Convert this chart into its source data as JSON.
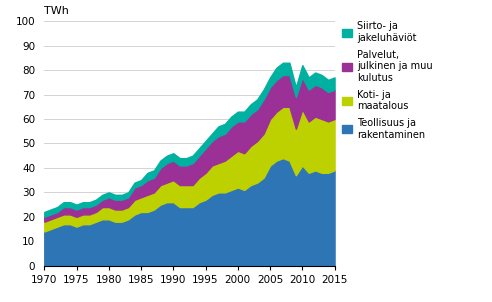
{
  "years": [
    1970,
    1971,
    1972,
    1973,
    1974,
    1975,
    1976,
    1977,
    1978,
    1979,
    1980,
    1981,
    1982,
    1983,
    1984,
    1985,
    1986,
    1987,
    1988,
    1989,
    1990,
    1991,
    1992,
    1993,
    1994,
    1995,
    1996,
    1997,
    1998,
    1999,
    2000,
    2001,
    2002,
    2003,
    2004,
    2005,
    2006,
    2007,
    2008,
    2009,
    2010,
    2011,
    2012,
    2013,
    2014,
    2015
  ],
  "teollisuus": [
    14,
    15,
    16,
    17,
    17,
    16,
    17,
    17,
    18,
    19,
    19,
    18,
    18,
    19,
    21,
    22,
    22,
    23,
    25,
    26,
    26,
    24,
    24,
    24,
    26,
    27,
    29,
    30,
    30,
    31,
    32,
    31,
    33,
    34,
    36,
    41,
    43,
    44,
    43,
    37,
    41,
    38,
    39,
    38,
    38,
    39
  ],
  "koti": [
    4,
    4,
    4,
    4,
    4,
    4,
    4,
    4,
    4,
    5,
    5,
    5,
    5,
    5,
    6,
    6,
    7,
    7,
    8,
    8,
    9,
    9,
    9,
    9,
    10,
    11,
    12,
    12,
    13,
    14,
    15,
    15,
    16,
    17,
    18,
    19,
    20,
    21,
    22,
    19,
    23,
    21,
    22,
    22,
    21,
    21
  ],
  "palvelut": [
    2,
    2,
    2,
    3,
    3,
    3,
    3,
    3,
    3,
    3,
    4,
    4,
    4,
    4,
    5,
    5,
    6,
    6,
    7,
    8,
    8,
    8,
    8,
    9,
    9,
    10,
    10,
    11,
    11,
    12,
    12,
    13,
    13,
    13,
    14,
    13,
    13,
    13,
    13,
    13,
    13,
    13,
    13,
    13,
    12,
    12
  ],
  "siirto": [
    2,
    2,
    2,
    2,
    2,
    2,
    2,
    2,
    2,
    2,
    2,
    2,
    2,
    2,
    2,
    2,
    3,
    3,
    3,
    3,
    3,
    3,
    3,
    3,
    3,
    3,
    3,
    4,
    4,
    4,
    4,
    4,
    4,
    4,
    4,
    4,
    5,
    5,
    5,
    4,
    5,
    5,
    5,
    5,
    5,
    5
  ],
  "colors": {
    "teollisuus": "#2e75b6",
    "koti": "#bdd000",
    "palvelut": "#9b3096",
    "siirto": "#00b0a0"
  },
  "legend_labels": [
    "Siirto- ja\njakeluhäviöt",
    "Palvelut,\njulkinen ja muu\nkulutus",
    "Koti- ja\nmaatalous",
    "Teollisuus ja\nrakentaminen"
  ],
  "ylabel": "TWh",
  "ylim": [
    0,
    100
  ],
  "yticks": [
    0,
    10,
    20,
    30,
    40,
    50,
    60,
    70,
    80,
    90,
    100
  ],
  "xticks": [
    1970,
    1975,
    1980,
    1985,
    1990,
    1995,
    2000,
    2005,
    2010,
    2015
  ]
}
